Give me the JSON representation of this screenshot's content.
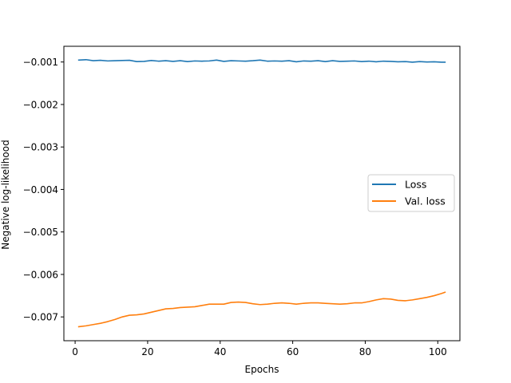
{
  "chart_data": {
    "type": "line",
    "xlabel": "Epochs",
    "ylabel": "Negative log-likelihood",
    "xlim": [
      -3.1,
      106.1
    ],
    "ylim": [
      -0.00756,
      -0.00063
    ],
    "xticks": [
      0,
      20,
      40,
      60,
      80,
      100
    ],
    "yticks": [
      -0.001,
      -0.002,
      -0.003,
      -0.004,
      -0.005,
      -0.006,
      -0.007
    ],
    "xtick_labels": [
      "0",
      "20",
      "40",
      "60",
      "80",
      "100"
    ],
    "ytick_labels": [
      "−0.001",
      "−0.002",
      "−0.003",
      "−0.004",
      "−0.005",
      "−0.006",
      "−0.007"
    ],
    "grid": false,
    "legend_position": "center-right",
    "series": [
      {
        "name": "Loss",
        "color": "#1f77b4",
        "x": [
          1,
          3,
          5,
          7,
          9,
          11,
          13,
          15,
          17,
          19,
          21,
          23,
          25,
          27,
          29,
          31,
          33,
          35,
          37,
          39,
          41,
          43,
          45,
          47,
          49,
          51,
          53,
          55,
          57,
          59,
          61,
          63,
          65,
          67,
          69,
          71,
          73,
          75,
          77,
          79,
          81,
          83,
          85,
          87,
          89,
          91,
          93,
          95,
          97,
          99,
          101,
          102
        ],
        "y": [
          -0.000955,
          -0.000945,
          -0.00097,
          -0.00096,
          -0.000975,
          -0.00097,
          -0.000965,
          -0.00096,
          -0.00099,
          -0.000985,
          -0.000965,
          -0.00098,
          -0.00097,
          -0.000985,
          -0.00097,
          -0.00099,
          -0.000975,
          -0.00098,
          -0.000975,
          -0.000955,
          -0.000985,
          -0.00097,
          -0.000975,
          -0.00098,
          -0.00097,
          -0.000955,
          -0.00098,
          -0.000975,
          -0.00098,
          -0.00097,
          -0.000995,
          -0.000975,
          -0.00098,
          -0.00097,
          -0.00099,
          -0.00097,
          -0.000985,
          -0.00098,
          -0.000975,
          -0.00099,
          -0.00098,
          -0.000995,
          -0.00098,
          -0.000985,
          -0.000995,
          -0.00099,
          -0.001005,
          -0.00099,
          -0.001,
          -0.000995,
          -0.001005,
          -0.001005
        ]
      },
      {
        "name": "Val. loss",
        "color": "#ff7f0e",
        "x": [
          1,
          3,
          5,
          7,
          9,
          11,
          13,
          15,
          17,
          19,
          21,
          23,
          25,
          27,
          29,
          31,
          33,
          35,
          37,
          39,
          41,
          43,
          45,
          47,
          49,
          51,
          53,
          55,
          57,
          59,
          61,
          63,
          65,
          67,
          69,
          71,
          73,
          75,
          77,
          79,
          81,
          83,
          85,
          87,
          89,
          91,
          93,
          95,
          97,
          99,
          101,
          102
        ],
        "y": [
          -0.00723,
          -0.00721,
          -0.00718,
          -0.00715,
          -0.00711,
          -0.00706,
          -0.007,
          -0.00696,
          -0.00695,
          -0.00693,
          -0.00689,
          -0.00685,
          -0.00681,
          -0.0068,
          -0.00678,
          -0.00677,
          -0.00676,
          -0.00673,
          -0.0067,
          -0.0067,
          -0.0067,
          -0.00666,
          -0.00665,
          -0.00666,
          -0.00669,
          -0.00671,
          -0.0067,
          -0.00668,
          -0.00667,
          -0.00668,
          -0.0067,
          -0.00668,
          -0.00667,
          -0.00667,
          -0.00668,
          -0.00669,
          -0.0067,
          -0.00669,
          -0.00667,
          -0.00667,
          -0.00664,
          -0.0066,
          -0.00657,
          -0.00658,
          -0.00661,
          -0.00662,
          -0.0066,
          -0.00657,
          -0.00654,
          -0.0065,
          -0.00645,
          -0.00642
        ]
      }
    ]
  }
}
